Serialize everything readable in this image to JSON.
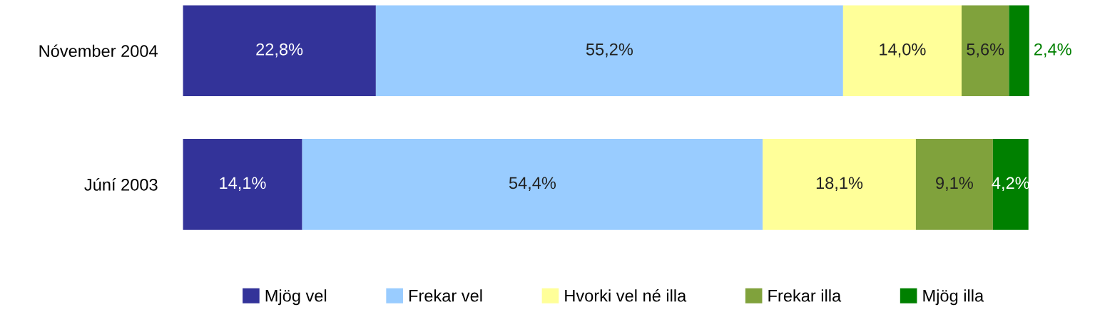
{
  "chart_data": {
    "type": "bar",
    "orientation": "horizontal",
    "stacked": true,
    "categories": [
      "Nóvember 2004",
      "Júní 2003"
    ],
    "xlim": [
      0,
      100
    ],
    "tick_labels": "y",
    "grid": false,
    "legend": "bottom",
    "series": [
      {
        "name": "Mjög vel",
        "color": "#333399",
        "values": [
          22.8,
          14.1
        ],
        "value_labels": [
          "22,8%",
          "14,1%"
        ]
      },
      {
        "name": "Frekar vel",
        "color": "#99ccff",
        "values": [
          55.2,
          54.4
        ],
        "value_labels": [
          "55,2%",
          "54,4%"
        ]
      },
      {
        "name": "Hvorki vel né illa",
        "color": "#ffff99",
        "values": [
          14.0,
          18.1
        ],
        "value_labels": [
          "14,0%",
          "18,1%"
        ]
      },
      {
        "name": "Frekar illa",
        "color": "#80a23c",
        "values": [
          5.6,
          9.1
        ],
        "value_labels": [
          "5,6%",
          "9,1%"
        ]
      },
      {
        "name": "Mjög illa",
        "color": "#008000",
        "values": [
          2.4,
          4.2
        ],
        "value_labels": [
          "2,4%",
          "4,2%"
        ]
      }
    ]
  }
}
